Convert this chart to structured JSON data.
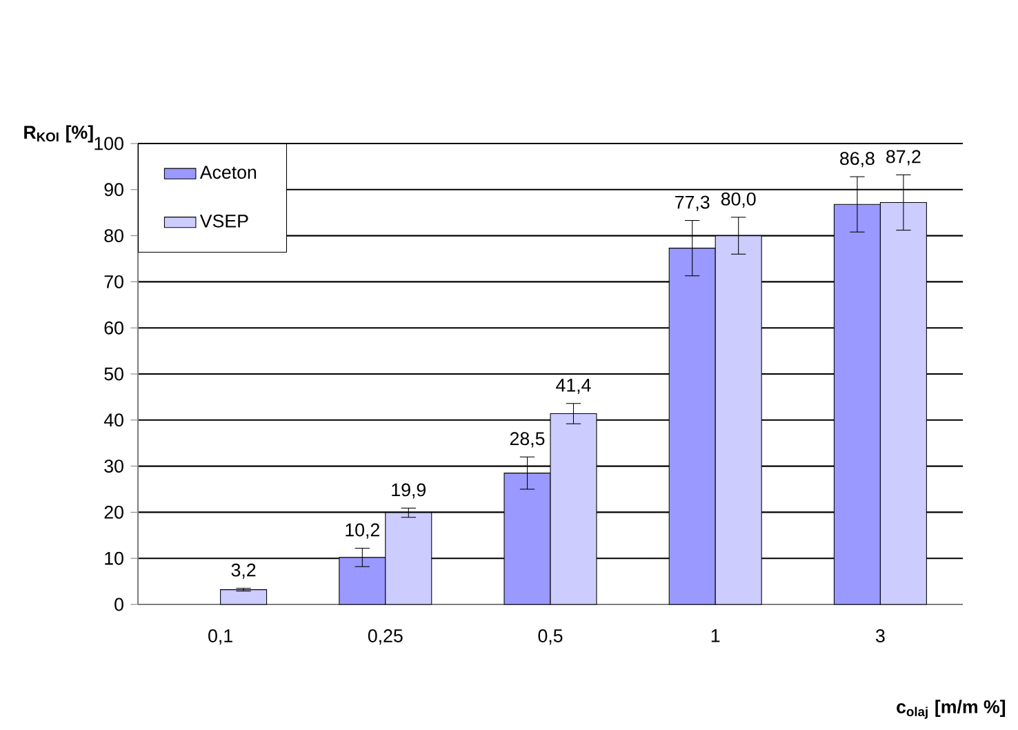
{
  "chart_data": {
    "type": "bar",
    "ylabel": "R$_{KOI}$ [%]",
    "xlabel": "c$_{olaj}$ [m/m %]",
    "categories": [
      "0,1",
      "0,25",
      "0,5",
      "1",
      "3"
    ],
    "series": [
      {
        "name": "Aceton",
        "color": "#9999ff",
        "values": [
          null,
          10.2,
          28.5,
          77.3,
          86.8
        ],
        "errors": [
          null,
          2,
          3.5,
          6,
          6
        ],
        "value_labels": [
          null,
          "10,2",
          "28,5",
          "77,3",
          "86,8"
        ]
      },
      {
        "name": "VSEP",
        "color": "#ccccff",
        "values": [
          3.2,
          19.9,
          41.4,
          80.0,
          87.2
        ],
        "errors": [
          0.3,
          1,
          2.2,
          4,
          6
        ],
        "value_labels": [
          "3,2",
          "19,9",
          "41,4",
          "80,0",
          "87,2"
        ]
      }
    ],
    "ylim": [
      0,
      100
    ],
    "yticks": [
      0,
      10,
      20,
      30,
      40,
      50,
      60,
      70,
      80,
      90,
      100
    ],
    "grid": "y",
    "legend": "top left"
  }
}
